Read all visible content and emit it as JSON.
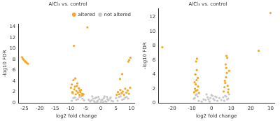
{
  "chart_data": [
    {
      "type": "scatter",
      "title": "AlCl₃ vs. control",
      "x_label": "log2 fold change",
      "y_label": "-log10 FDR",
      "xlim": [
        -27,
        11
      ],
      "xticks": [
        -25,
        -20,
        -15,
        -10,
        -5,
        0,
        5,
        10
      ],
      "ylim": [
        0,
        14.5
      ],
      "yticks": [
        0,
        2,
        4,
        6,
        8,
        10,
        12,
        14
      ],
      "grid": false,
      "legend": "upper right",
      "series": [
        {
          "name": "altered",
          "color": "#f5a623",
          "marker": "circle",
          "x": [
            -25.8,
            -25.5,
            -25.2,
            -24.9,
            -24.6,
            -24.3,
            -23.9,
            -8.8,
            -4.4,
            -9.8,
            -9.5,
            -9.2,
            -9.0,
            -8.7,
            -8.5,
            -8.2,
            -8.0,
            -7.7,
            -7.5,
            -7.2,
            -7.0,
            -6.7,
            -6.5,
            -6.2,
            -6.0,
            -5.7,
            -9.3,
            -8.4,
            -7.9,
            -6.9,
            5.2,
            5.6,
            6.0,
            6.4,
            6.8,
            7.2,
            7.6,
            8.0,
            8.4,
            8.8,
            9.2,
            9.6,
            9.0,
            9.3,
            9.7,
            6.3,
            7.0
          ],
          "values": [
            8.4,
            8.1,
            7.9,
            7.7,
            7.5,
            7.4,
            7.2,
            10.5,
            13.9,
            2.8,
            3.4,
            1.8,
            4.2,
            2.5,
            3.0,
            1.6,
            2.2,
            3.6,
            1.9,
            2.7,
            1.5,
            2.0,
            2.4,
            1.7,
            1.4,
            1.6,
            2.0,
            4.5,
            3.1,
            2.3,
            1.5,
            2.0,
            1.6,
            2.4,
            1.8,
            2.1,
            1.5,
            2.6,
            1.9,
            2.3,
            1.7,
            2.8,
            7.6,
            7.9,
            8.3,
            4.4,
            5.3
          ]
        },
        {
          "name": "not altered",
          "color": "#c8c8c8",
          "marker": "circle",
          "x": [
            -3.5,
            -3,
            -2.5,
            -2,
            -1.5,
            -1,
            -0.5,
            0,
            0.5,
            1,
            1.5,
            2,
            2.5,
            3,
            3.5,
            -2.8,
            -1.8,
            -0.8,
            0.2,
            1.2,
            2.2,
            3.2,
            -6,
            -7,
            -8,
            -9,
            -5.5,
            -6.5,
            -7.5,
            -8.5,
            -9.5,
            5,
            6,
            7,
            8,
            9,
            5.5,
            6.5,
            7.5,
            8.5,
            -4,
            4,
            -1.2,
            0.8,
            1.8,
            -2.2
          ],
          "values": [
            0.3,
            0.5,
            0.8,
            0.2,
            1.0,
            0.4,
            0.7,
            0.1,
            0.6,
            0.9,
            0.3,
            1.1,
            0.5,
            0.8,
            0.4,
            1.2,
            0.9,
            1.1,
            0.5,
            1.2,
            0.7,
            1.0,
            0.8,
            1.1,
            0.6,
            0.9,
            0.5,
            1.2,
            0.7,
            1.0,
            0.4,
            0.9,
            1.1,
            0.6,
            1.0,
            0.8,
            0.4,
            1.2,
            0.7,
            1.1,
            0.6,
            0.3,
            0.2,
            0.15,
            0.25,
            0.35
          ]
        }
      ]
    },
    {
      "type": "scatter",
      "title": "AlCl₃ vs. control",
      "x_label": "log2 fold change",
      "y_label": "-log10 FDR",
      "xlim": [
        -27,
        32
      ],
      "xticks": [
        -20,
        -10,
        0,
        10,
        20,
        30
      ],
      "ylim": [
        0,
        13.2
      ],
      "yticks": [
        0,
        2,
        4,
        6,
        8,
        10,
        12
      ],
      "grid": false,
      "series": [
        {
          "name": "altered",
          "color": "#f5a623",
          "marker": "circle",
          "x": [
            -25,
            -8.8,
            -8.4,
            -8.0,
            -7.6,
            -7.2,
            -6.8,
            -6.4,
            -8.2,
            -7.8,
            -7.4,
            -7.0,
            -8.6,
            -7.5,
            -8.0,
            6.2,
            6.6,
            7.0,
            7.4,
            7.8,
            8.2,
            8.6,
            9.0,
            7.2,
            7.6,
            8.0,
            6.8,
            8.4,
            7.5,
            24,
            30
          ],
          "values": [
            7.8,
            1.5,
            2.0,
            2.6,
            3.2,
            1.8,
            2.3,
            1.4,
            4.0,
            5.8,
            6.2,
            3.5,
            2.9,
            4.6,
            1.7,
            1.6,
            2.2,
            2.8,
            3.6,
            4.2,
            2.4,
            1.9,
            4.5,
            5.4,
            6.6,
            6.3,
            3.1,
            1.5,
            4.9,
            7.3,
            12.6
          ]
        },
        {
          "name": "not altered",
          "color": "#c8c8c8",
          "marker": "circle",
          "x": [
            -3,
            -2,
            -1,
            0,
            1,
            2,
            3,
            -2.5,
            -1.5,
            -0.5,
            0.5,
            1.5,
            2.5,
            -7,
            -8,
            -9,
            -6.5,
            -7.5,
            -8.5,
            6,
            7,
            8,
            9,
            6.5,
            7.5,
            8.5,
            -4,
            4,
            -5,
            5
          ],
          "values": [
            0.4,
            0.8,
            0.2,
            1.1,
            0.6,
            0.9,
            0.3,
            1.2,
            0.5,
            0.7,
            1.0,
            0.4,
            0.8,
            0.9,
            1.1,
            0.6,
            0.3,
            1.2,
            0.7,
            0.8,
            1.0,
            0.5,
            1.2,
            0.3,
            0.9,
            0.6,
            0.5,
            0.7,
            0.2,
            0.4
          ]
        }
      ]
    }
  ]
}
